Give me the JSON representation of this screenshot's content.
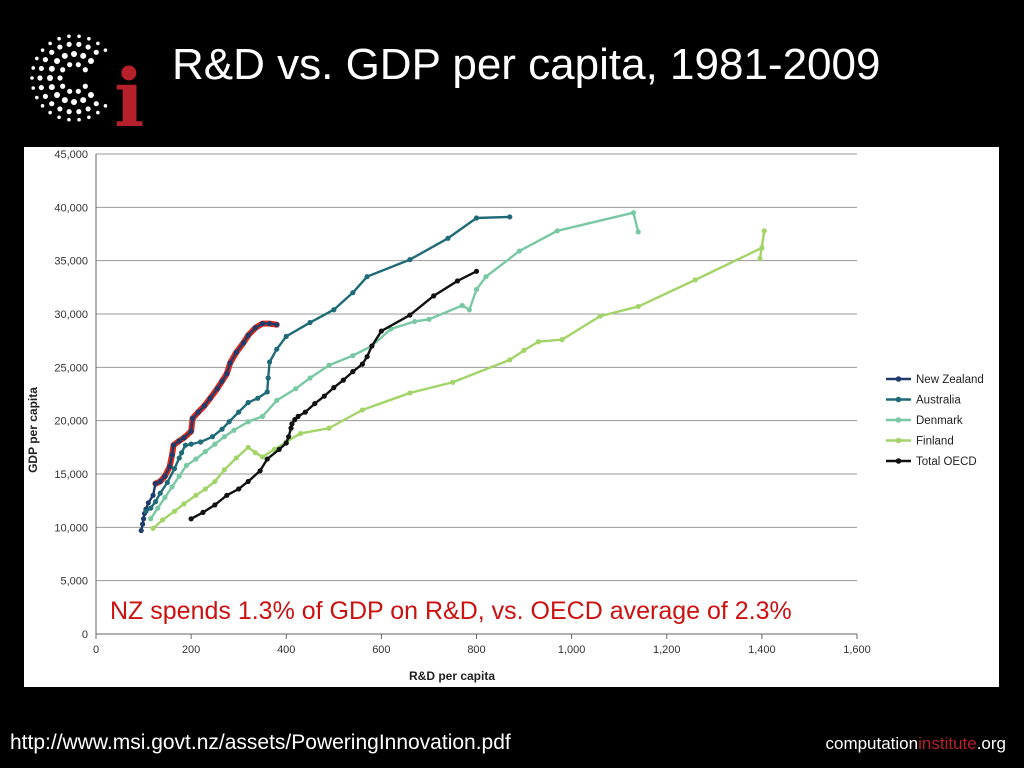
{
  "slide": {
    "title": "R&D vs. GDP per capita, 1981-2009",
    "logo_letter": "i",
    "footer_url": "http://www.msi.govt.nz/assets/PoweringInnovation.pdf",
    "brand_part1": "computation",
    "brand_part2": "institute",
    "brand_part3": ".org",
    "logo_color": "#b5202b"
  },
  "chart_data": {
    "type": "line",
    "xlabel": "R&D per capita",
    "ylabel": "GDP per capita",
    "xlim": [
      0,
      1600
    ],
    "ylim": [
      0,
      45000
    ],
    "xticks": [
      "0",
      "200",
      "400",
      "600",
      "800",
      "1,000",
      "1,200",
      "1,400",
      "1,600"
    ],
    "yticks": [
      "0",
      "5,000",
      "10,000",
      "15,000",
      "20,000",
      "25,000",
      "30,000",
      "35,000",
      "40,000",
      "45,000"
    ],
    "grid": "horizontal",
    "legend_position": "right",
    "annotation": "NZ spends 1.3% of GDP on R&D, vs. OECD average of 2.3%",
    "annotation_color": "#cc1111",
    "highlight_series": "New Zealand",
    "highlight_color": "#dd2a1c",
    "series": [
      {
        "name": "New Zealand",
        "color": "#1f3c6c",
        "points": [
          [
            95,
            9700
          ],
          [
            98,
            10300
          ],
          [
            100,
            10800
          ],
          [
            102,
            11300
          ],
          [
            105,
            11700
          ],
          [
            110,
            12300
          ],
          [
            120,
            13000
          ],
          [
            125,
            14100
          ],
          [
            135,
            14300
          ],
          [
            145,
            14800
          ],
          [
            155,
            15700
          ],
          [
            160,
            16800
          ],
          [
            163,
            17700
          ],
          [
            175,
            18100
          ],
          [
            185,
            18400
          ],
          [
            200,
            19000
          ],
          [
            203,
            20200
          ],
          [
            215,
            20800
          ],
          [
            228,
            21400
          ],
          [
            240,
            22100
          ],
          [
            255,
            23000
          ],
          [
            265,
            23700
          ],
          [
            275,
            24400
          ],
          [
            282,
            25400
          ],
          [
            295,
            26400
          ],
          [
            310,
            27300
          ],
          [
            320,
            28000
          ],
          [
            335,
            28700
          ],
          [
            350,
            29100
          ],
          [
            365,
            29100
          ],
          [
            380,
            29000
          ]
        ]
      },
      {
        "name": "Australia",
        "color": "#1e6a77",
        "points": [
          [
            105,
            11500
          ],
          [
            115,
            11800
          ],
          [
            125,
            12400
          ],
          [
            135,
            13200
          ],
          [
            150,
            14200
          ],
          [
            165,
            15500
          ],
          [
            175,
            16500
          ],
          [
            180,
            17000
          ],
          [
            188,
            17700
          ],
          [
            200,
            17800
          ],
          [
            220,
            18000
          ],
          [
            245,
            18500
          ],
          [
            265,
            19200
          ],
          [
            280,
            19900
          ],
          [
            300,
            20800
          ],
          [
            320,
            21700
          ],
          [
            340,
            22100
          ],
          [
            360,
            22700
          ],
          [
            362,
            24000
          ],
          [
            365,
            25500
          ],
          [
            380,
            26700
          ],
          [
            400,
            27900
          ],
          [
            450,
            29200
          ],
          [
            500,
            30400
          ],
          [
            540,
            32000
          ],
          [
            570,
            33500
          ],
          [
            660,
            35100
          ],
          [
            740,
            37100
          ],
          [
            800,
            39000
          ],
          [
            870,
            39100
          ]
        ]
      },
      {
        "name": "Denmark",
        "color": "#79c8a4",
        "points": [
          [
            115,
            10800
          ],
          [
            130,
            11800
          ],
          [
            145,
            12800
          ],
          [
            160,
            13800
          ],
          [
            175,
            14800
          ],
          [
            190,
            15800
          ],
          [
            210,
            16400
          ],
          [
            230,
            17100
          ],
          [
            250,
            17800
          ],
          [
            270,
            18500
          ],
          [
            290,
            19100
          ],
          [
            320,
            19900
          ],
          [
            350,
            20400
          ],
          [
            380,
            21900
          ],
          [
            420,
            23000
          ],
          [
            450,
            24000
          ],
          [
            490,
            25200
          ],
          [
            540,
            26100
          ],
          [
            580,
            27000
          ],
          [
            620,
            28600
          ],
          [
            670,
            29300
          ],
          [
            700,
            29500
          ],
          [
            770,
            30800
          ],
          [
            785,
            30400
          ],
          [
            800,
            32300
          ],
          [
            820,
            33500
          ],
          [
            890,
            35900
          ],
          [
            970,
            37800
          ],
          [
            1130,
            39500
          ],
          [
            1140,
            37700
          ]
        ]
      },
      {
        "name": "Finland",
        "color": "#a3d46a",
        "points": [
          [
            120,
            9900
          ],
          [
            140,
            10700
          ],
          [
            165,
            11500
          ],
          [
            185,
            12200
          ],
          [
            210,
            13000
          ],
          [
            230,
            13600
          ],
          [
            250,
            14300
          ],
          [
            270,
            15400
          ],
          [
            295,
            16500
          ],
          [
            320,
            17500
          ],
          [
            335,
            17000
          ],
          [
            350,
            16600
          ],
          [
            375,
            17300
          ],
          [
            400,
            18000
          ],
          [
            430,
            18800
          ],
          [
            490,
            19300
          ],
          [
            560,
            21000
          ],
          [
            660,
            22600
          ],
          [
            750,
            23600
          ],
          [
            870,
            25700
          ],
          [
            900,
            26600
          ],
          [
            930,
            27400
          ],
          [
            980,
            27600
          ],
          [
            1060,
            29800
          ],
          [
            1140,
            30700
          ],
          [
            1260,
            33200
          ],
          [
            1400,
            36200
          ],
          [
            1405,
            37800
          ],
          [
            1396,
            35200
          ]
        ]
      },
      {
        "name": "Total OECD",
        "color": "#111111",
        "points": [
          [
            200,
            10800
          ],
          [
            225,
            11400
          ],
          [
            250,
            12100
          ],
          [
            275,
            13000
          ],
          [
            300,
            13600
          ],
          [
            320,
            14300
          ],
          [
            345,
            15300
          ],
          [
            360,
            16400
          ],
          [
            385,
            17300
          ],
          [
            400,
            17900
          ],
          [
            405,
            18500
          ],
          [
            410,
            19300
          ],
          [
            412,
            19700
          ],
          [
            418,
            20100
          ],
          [
            425,
            20400
          ],
          [
            440,
            20800
          ],
          [
            460,
            21600
          ],
          [
            480,
            22300
          ],
          [
            500,
            23100
          ],
          [
            520,
            23800
          ],
          [
            540,
            24600
          ],
          [
            560,
            25300
          ],
          [
            570,
            26000
          ],
          [
            580,
            27000
          ],
          [
            600,
            28400
          ],
          [
            660,
            29900
          ],
          [
            710,
            31700
          ],
          [
            760,
            33100
          ],
          [
            800,
            34000
          ]
        ]
      }
    ]
  }
}
